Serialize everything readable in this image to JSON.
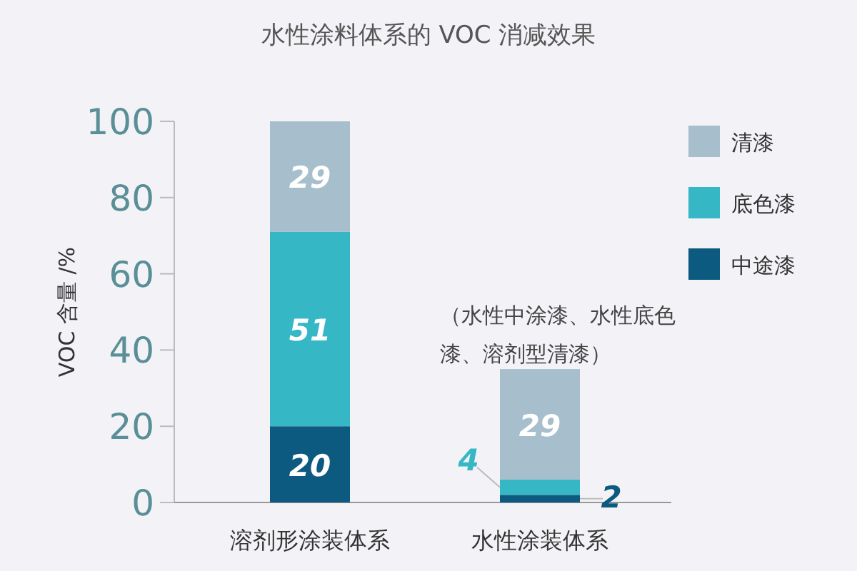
{
  "chart_data": {
    "type": "bar",
    "title": "水性涂料体系的 VOC 消减效果",
    "ylabel": "VOC 含量 /%",
    "categories": [
      "溶剂形涂装体系",
      "水性涂装体系"
    ],
    "stacked": true,
    "ylim": [
      0,
      100
    ],
    "yticks": [
      0,
      20,
      40,
      60,
      80,
      100
    ],
    "legend": "top right",
    "data_labels": true,
    "annotations": [
      "（水性中涂漆、水性底色漆、溶剂型清漆）"
    ],
    "series": [
      {
        "name": "中途漆",
        "color": "#0d5a80",
        "values": [
          20,
          2
        ]
      },
      {
        "name": "底色漆",
        "color": "#35b7c6",
        "values": [
          51,
          4
        ]
      },
      {
        "name": "清漆",
        "color": "#a7bfcc",
        "values": [
          29,
          29
        ]
      }
    ]
  }
}
